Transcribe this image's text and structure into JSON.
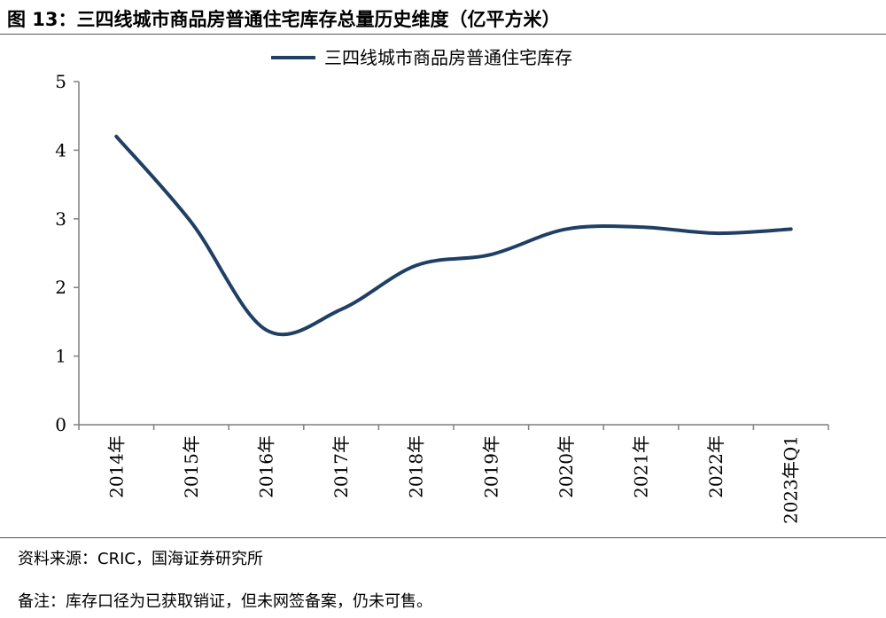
{
  "figure": {
    "title": "图 13：三四线城市商品房普通住宅库存总量历史维度（亿平方米）",
    "source": "资料来源：CRIC，国海证券研究所",
    "remark": "备注：库存口径为已获取销证，但未网签备案，仍未可售。"
  },
  "chart_data": {
    "type": "line",
    "title": "三四线城市商品房普通住宅库存总量历史维度（亿平方米）",
    "xlabel": "",
    "ylabel": "",
    "categories": [
      "2014年",
      "2015年",
      "2016年",
      "2017年",
      "2018年",
      "2019年",
      "2020年",
      "2021年",
      "2022年",
      "2023年Q1"
    ],
    "series": [
      {
        "name": "三四线城市商品房普通住宅库存",
        "values": [
          4.2,
          2.95,
          1.38,
          1.68,
          2.32,
          2.48,
          2.85,
          2.88,
          2.79,
          2.85
        ],
        "color": "#1f3f64"
      }
    ],
    "ylim": [
      0,
      5
    ],
    "yticks": [
      "0",
      "1",
      "2",
      "3",
      "4",
      "5"
    ],
    "grid": false,
    "legend_position": "top-center",
    "smooth": true
  }
}
